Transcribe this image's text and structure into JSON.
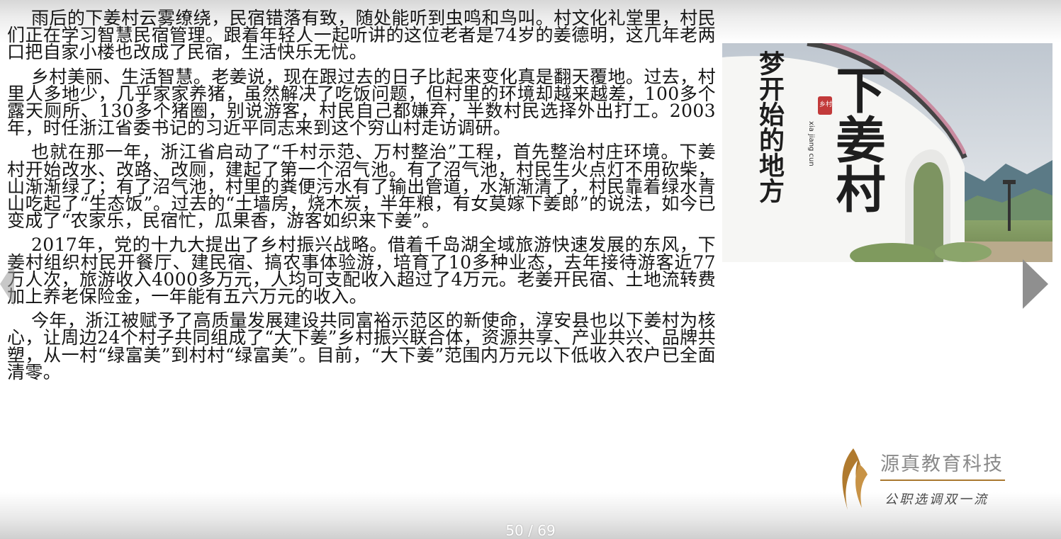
{
  "article": {
    "paragraphs": [
      "雨后的下姜村云雾缭绕，民宿错落有致，随处能听到虫鸣和鸟叫。村文化礼堂里，村民们正在学习智慧民宿管理。跟着年轻人一起听讲的这位老者是74岁的姜德明，这几年老两口把自家小楼也改成了民宿，生活快乐无忧。",
      "乡村美丽、生活智慧。老姜说，现在跟过去的日子比起来变化真是翻天覆地。过去，村里人多地少，几乎家家养猪，虽然解决了吃饭问题，但村里的环境却越来越差，100多个露天厕所、130多个猪圈，别说游客，村民自己都嫌弃，半数村民选择外出打工。2003年，时任浙江省委书记的习近平同志来到这个穷山村走访调研。",
      "也就在那一年，浙江省启动了“千村示范、万村整治”工程，首先整治村庄环境。下姜村开始改水、改路、改厕，建起了第一个沼气池。有了沼气池，村民生火点灯不用砍柴，山渐渐绿了；有了沼气池，村里的粪便污水有了输出管道，水渐渐清了，村民靠着绿水青山吃起了“生态饭”。过去的“土墙房，烧木炭，半年粮，有女莫嫁下姜郎”的说法，如今已变成了“农家乐，民宿忙，瓜果香，游客如织来下姜”。",
      "2017年，党的十九大提出了乡村振兴战略。借着千岛湖全域旅游快速发展的东风，下姜村组织村民开餐厅、建民宿、搞农事体验游，培育了10多种业态，去年接待游客近77万人次，旅游收入4000多万元，人均可支配收入超过了4万元。老姜开民宿、土地流转费加上养老保险金，一年能有五六万元的收入。",
      "今年，浙江被赋予了高质量发展建设共同富裕示范区的新使命，淳安县也以下姜村为核心，让周边24个村子共同组成了“大下姜”乡村振兴联合体，资源共享、产业共兴、品牌共塑，从一村“绿富美”到村村“绿富美”。目前，“大下姜”范围内万元以下低收入农户已全面清零。"
    ]
  },
  "photo": {
    "wall_text_large": "下姜村",
    "wall_text_small": "梦开始的地方",
    "pinyin": "xia jiang cun",
    "stamp": "乡村"
  },
  "logo": {
    "name": "源真教育科技",
    "slogan": "公职选调双一流",
    "accent_color": "#a9782f"
  },
  "pager": {
    "indicator": "50 / 69"
  }
}
